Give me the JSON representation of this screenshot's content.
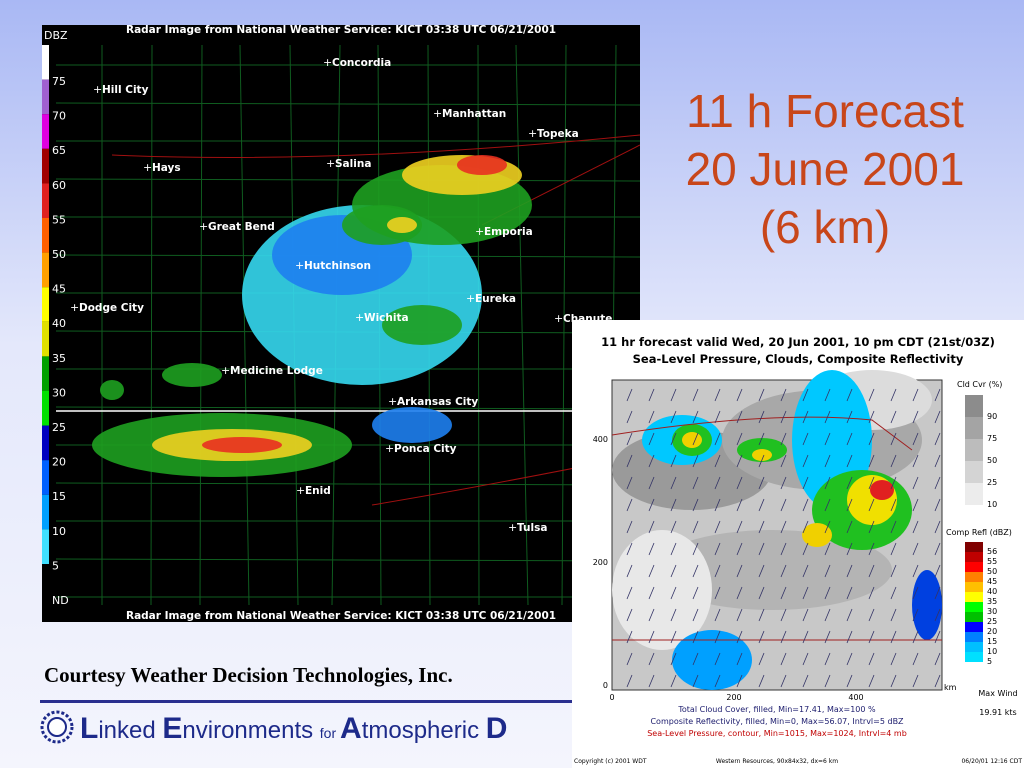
{
  "slide": {
    "title_lines": [
      "11 h Forecast",
      "20 June 2001",
      "(6 km)"
    ],
    "credit": "Courtesy Weather Decision Technologies, Inc.",
    "footer_parts": [
      "L",
      "inked ",
      "E",
      "nvironments ",
      "for ",
      "A",
      "tmospheric ",
      "D"
    ]
  },
  "radar": {
    "header": "Radar Image from National Weather Service: KICT   03:38 UTC 06/21/2001",
    "footer": "Radar Image from National Weather Service: KICT   03:38 UTC 06/21/2001",
    "legend_title": "DBZ",
    "legend_labels": [
      75,
      70,
      65,
      60,
      55,
      50,
      45,
      40,
      35,
      30,
      25,
      20,
      15,
      10,
      5,
      "ND"
    ],
    "cities": [
      "Concordia",
      "Hill City",
      "Manhattan",
      "Topeka",
      "Hays",
      "Salina",
      "Great Bend",
      "Emporia",
      "Hutchinson",
      "Eureka",
      "Dodge City",
      "Wichita",
      "Chanute",
      "Medicine Lodge",
      "Arkansas City",
      "Ponca City",
      "Enid",
      "Tulsa"
    ]
  },
  "forecast": {
    "title_lines": [
      "11 hr forecast valid Wed, 20 Jun 2001, 10 pm CDT (21st/03Z)",
      "Sea-Level Pressure, Clouds, Composite Reflectivity"
    ],
    "y_ticks": [
      400,
      200,
      0
    ],
    "x_ticks": [
      0,
      200,
      400
    ],
    "x_unit": "km",
    "cloud_legend_title": "Cld Cvr (%)",
    "cloud_legend": [
      90,
      75,
      50,
      25,
      10
    ],
    "refl_legend_title": "Comp Refl (dBZ)",
    "refl_legend": [
      56,
      55,
      50,
      45,
      40,
      35,
      30,
      25,
      20,
      15,
      10,
      5
    ],
    "captions": [
      "Total Cloud Cover, filled, Min=17.41, Max=100 %",
      "Composite Reflectivity, filled, Min=0, Max=56.07, Intrvl=5 dBZ",
      "Sea-Level Pressure, contour, Min=1015, Max=1024, Intrvl=4 mb"
    ],
    "max_wind_label": "Max Wind",
    "max_wind_value": "19.91 kts",
    "copyright": "Copyright (c) 2001 WDT",
    "domain": "Western Resources, 90x84x32, dx=6 km",
    "timestamp": "06/20/01 12:16 CDT"
  }
}
